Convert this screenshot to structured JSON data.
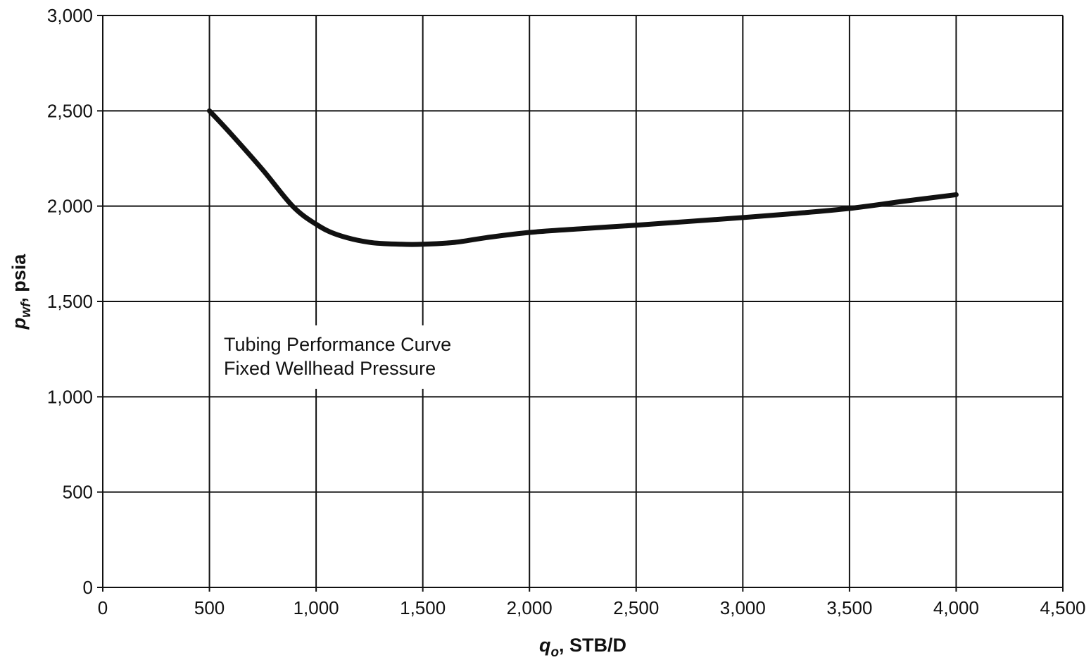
{
  "chart_data": {
    "type": "line",
    "title": "",
    "xlabel": {
      "main": "q",
      "sub": "o",
      "rest": ", STB/D"
    },
    "ylabel": {
      "main": "p",
      "sub": "wf",
      "rest": ", psia"
    },
    "xlim": [
      0,
      4500
    ],
    "ylim": [
      0,
      3000
    ],
    "xticks": [
      0,
      500,
      1000,
      1500,
      2000,
      2500,
      3000,
      3500,
      4000,
      4500
    ],
    "xtick_labels": [
      "0",
      "500",
      "1,000",
      "1,500",
      "2,000",
      "2,500",
      "3,000",
      "3,500",
      "4,000",
      "4,500"
    ],
    "yticks": [
      0,
      500,
      1000,
      1500,
      2000,
      2500,
      3000
    ],
    "ytick_labels": [
      "0",
      "500",
      "1,000",
      "1,500",
      "2,000",
      "2,500",
      "3,000"
    ],
    "grid": true,
    "annotation": [
      "Tubing Performance Curve",
      "Fixed Wellhead Pressure"
    ],
    "series": [
      {
        "color": "#111111",
        "x": [
          500,
          600,
          750,
          890,
          1000,
          1100,
          1250,
          1400,
          1500,
          1650,
          1800,
          2000,
          2250,
          2500,
          2750,
          3000,
          3250,
          3500,
          3750,
          4000
        ],
        "y": [
          2500,
          2380,
          2190,
          2000,
          1905,
          1850,
          1810,
          1800,
          1800,
          1810,
          1835,
          1862,
          1882,
          1900,
          1920,
          1940,
          1962,
          1988,
          2025,
          2060
        ]
      }
    ]
  }
}
